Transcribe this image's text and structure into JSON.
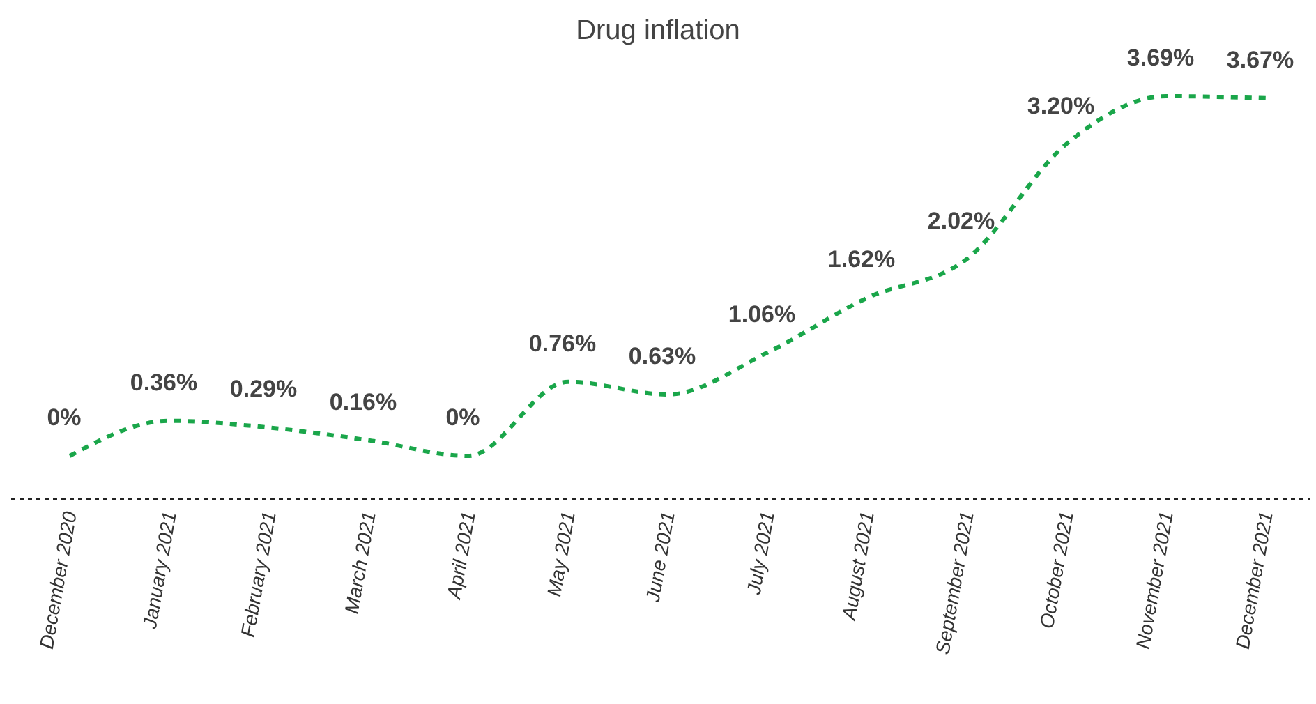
{
  "chart_data": {
    "type": "line",
    "title": "Drug inflation",
    "categories": [
      "December 2020",
      "January 2021",
      "February 2021",
      "March 2021",
      "April 2021",
      "May 2021",
      "June 2021",
      "July 2021",
      "August 2021",
      "September 2021",
      "October 2021",
      "November 2021",
      "December 2021"
    ],
    "series": [
      {
        "color": "#1aa64a",
        "values": [
          0,
          0.36,
          0.29,
          0.16,
          0,
          0.76,
          0.63,
          1.06,
          1.62,
          2.02,
          3.2,
          3.69,
          3.67
        ],
        "value_labels": [
          "0%",
          "0.36%",
          "0.29%",
          "0.16%",
          "0%",
          "0.76%",
          "0.63%",
          "1.06%",
          "1.62%",
          "2.02%",
          "3.20%",
          "3.69%",
          "3.67%"
        ]
      }
    ],
    "line_style": "dashed"
  }
}
